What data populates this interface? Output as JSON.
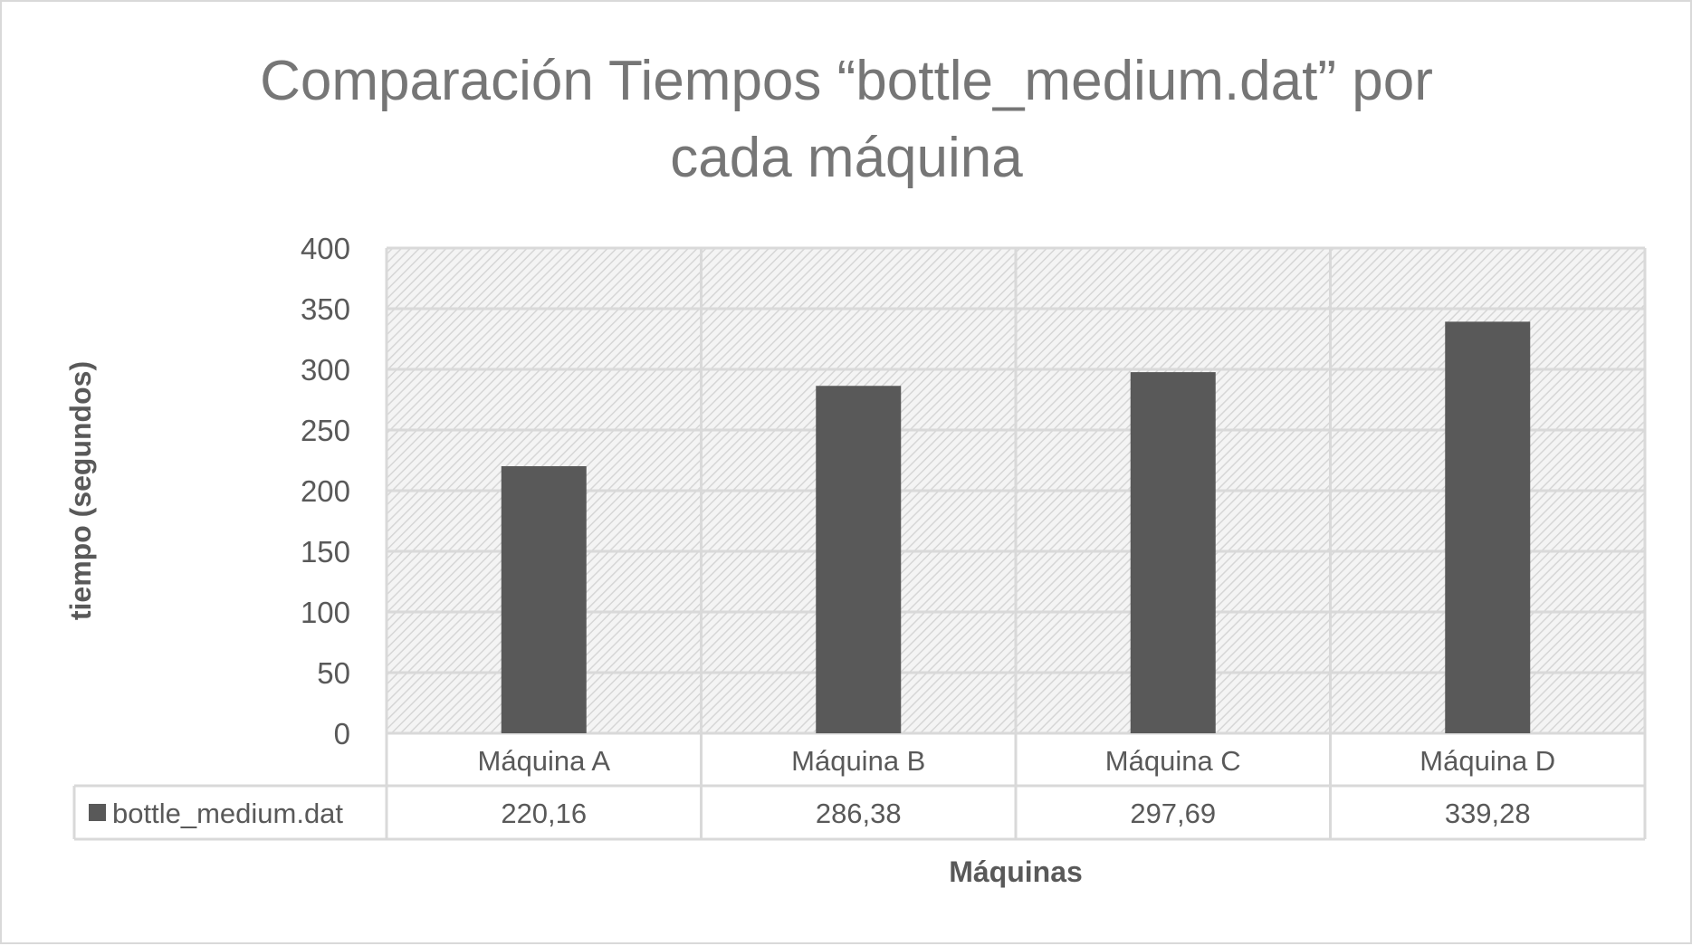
{
  "chart_data": {
    "type": "bar",
    "title_lines": [
      "Comparación Tiempos “bottle_medium.dat” por",
      "cada máquina"
    ],
    "xlabel": "Máquinas",
    "ylabel": "tiempo (segundos)",
    "categories": [
      "Máquina A",
      "Máquina B",
      "Máquina C",
      "Máquina D"
    ],
    "series": [
      {
        "name": "bottle_medium.dat",
        "values": [
          220.16,
          286.38,
          297.69,
          339.28
        ],
        "display_values": [
          "220,16",
          "286,38",
          "297,69",
          "339,28"
        ],
        "color": "#595959"
      }
    ],
    "ylim": [
      0,
      400
    ],
    "yticks": [
      "0",
      "50",
      "100",
      "150",
      "200",
      "250",
      "300",
      "350",
      "400"
    ],
    "grid": true,
    "plot_background": "hatched light gray",
    "legend": "data table below x-axis",
    "colors": {
      "bar": "#595959",
      "grid": "#d9d9d9",
      "text": "#595959",
      "title": "#767676"
    }
  }
}
